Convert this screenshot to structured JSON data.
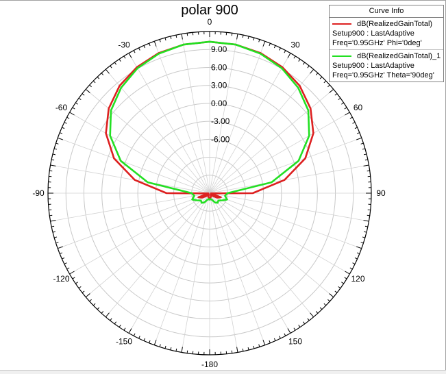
{
  "title": "polar 900",
  "legend": {
    "header": "Curve Info",
    "entries": [
      {
        "name": "dB(RealizedGainTotal)",
        "setup": "Setup900 : LastAdaptive",
        "condition": "Freq='0.95GHz' Phi='0deg'",
        "color": "#dd2020"
      },
      {
        "name": "dB(RealizedGainTotal)_1",
        "setup": "Setup900 : LastAdaptive",
        "condition": "Freq='0.95GHz' Theta='90deg'",
        "color": "#22e022"
      }
    ]
  },
  "chart_data": {
    "type": "polar",
    "title": "polar 900",
    "radial_unit": "dB",
    "radial_range": [
      -15,
      12
    ],
    "radial_ticks": [
      -6,
      -3,
      0,
      3,
      6,
      9
    ],
    "radial_tick_labels": [
      "-6.00",
      "-3.00",
      "0.00",
      "3.00",
      "6.00",
      "9.00"
    ],
    "angle_ticks": [
      0,
      30,
      60,
      90,
      120,
      150,
      -180,
      -150,
      -120,
      -90,
      -60,
      -30
    ],
    "angle_tick_labels": [
      "0",
      "30",
      "60",
      "90",
      "120",
      "150",
      "-180",
      "-150",
      "-120",
      "-90",
      "-60",
      "-30"
    ],
    "angle_zero": "top",
    "angle_direction": "clockwise",
    "series": [
      {
        "name": "dB(RealizedGainTotal)",
        "color": "#dd2020",
        "theta": [
          0,
          10,
          20,
          30,
          40,
          50,
          60,
          70,
          80,
          90,
          100,
          110,
          120,
          130,
          140,
          150,
          160,
          170,
          180,
          -170,
          -160,
          -150,
          -140,
          -130,
          -120,
          -110,
          -100,
          -90,
          -80,
          -70,
          -60,
          -50,
          -40,
          -30,
          -20,
          -10
        ],
        "r": [
          10.3,
          10.2,
          9.9,
          9.3,
          8.4,
          7.0,
          5.0,
          2.0,
          -2.3,
          -7.8,
          -14.8,
          -13.0,
          -13.5,
          -14.2,
          -14.6,
          -14.7,
          -14.4,
          -14.2,
          -14.2,
          -14.2,
          -14.4,
          -14.7,
          -14.6,
          -14.2,
          -13.5,
          -13.0,
          -14.8,
          -7.8,
          -2.3,
          2.0,
          5.0,
          7.0,
          8.4,
          9.3,
          9.9,
          10.2
        ]
      },
      {
        "name": "dB(RealizedGainTotal)_1",
        "color": "#22e022",
        "theta": [
          0,
          10,
          20,
          30,
          40,
          50,
          60,
          70,
          80,
          90,
          100,
          110,
          120,
          130,
          140,
          150,
          160,
          170,
          180,
          -170,
          -160,
          -150,
          -140,
          -130,
          -120,
          -110,
          -100,
          -90,
          -80,
          -70,
          -60,
          -50,
          -40,
          -30,
          -20,
          -10
        ],
        "r": [
          10.3,
          10.2,
          9.8,
          9.1,
          8.0,
          6.5,
          4.2,
          0.8,
          -4.5,
          -12.0,
          -12.4,
          -11.9,
          -12.6,
          -13.1,
          -12.9,
          -13.2,
          -13.8,
          -14.0,
          -13.9,
          -14.0,
          -13.8,
          -13.2,
          -12.9,
          -13.1,
          -12.6,
          -11.9,
          -12.4,
          -12.0,
          -4.5,
          0.8,
          4.2,
          6.5,
          8.0,
          9.1,
          9.8,
          10.2
        ]
      }
    ]
  }
}
